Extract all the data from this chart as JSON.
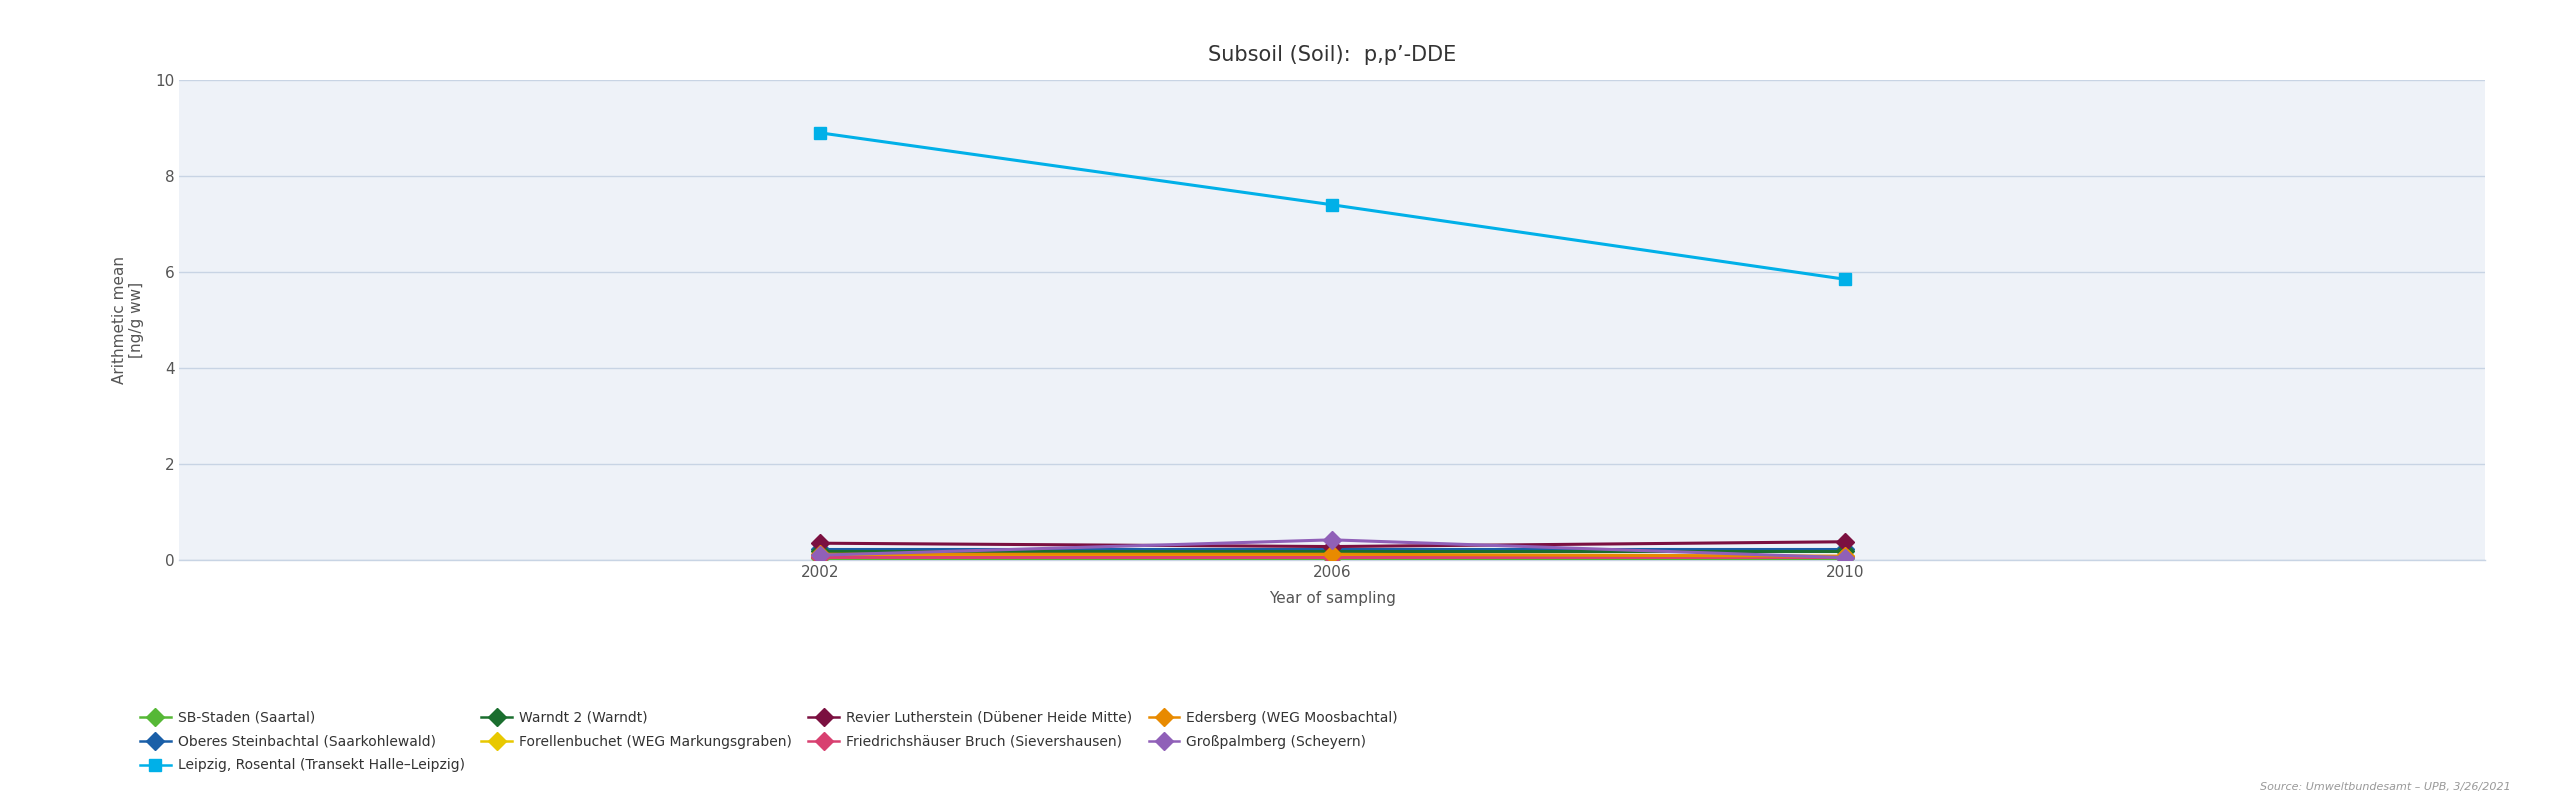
{
  "title": "Subsoil (Soil):  p,p’-DDE",
  "xlabel": "Year of sampling",
  "ylabel": "Arithmetic mean\n[ng/g ww]",
  "xlim": [
    1997,
    2015
  ],
  "ylim": [
    0,
    10
  ],
  "yticks": [
    0,
    2,
    4,
    6,
    8,
    10
  ],
  "xticks": [
    2002,
    2006,
    2010
  ],
  "years": [
    2002,
    2006,
    2010
  ],
  "series": [
    {
      "label": "SB-Staden (Saartal)",
      "color": "#56b836",
      "values": [
        0.05,
        0.05,
        0.05
      ],
      "marker": "D",
      "markersize": 9
    },
    {
      "label": "Oberes Steinbachtal (Saarkohlewald)",
      "color": "#1a5fa8",
      "values": [
        0.22,
        0.22,
        0.22
      ],
      "marker": "D",
      "markersize": 9
    },
    {
      "label": "Leipzig, Rosental (Transekt Halle–Leipzig)",
      "color": "#00b0e8",
      "values": [
        8.9,
        7.4,
        5.85
      ],
      "marker": "s",
      "markersize": 9
    },
    {
      "label": "Warndt 2 (Warndt)",
      "color": "#1a6e2e",
      "values": [
        0.18,
        0.18,
        0.18
      ],
      "marker": "D",
      "markersize": 9
    },
    {
      "label": "Forellenbuchet (WEG Markungsgraben)",
      "color": "#e8c800",
      "values": [
        0.08,
        0.08,
        0.08
      ],
      "marker": "D",
      "markersize": 9
    },
    {
      "label": "Revier Lutherstein (Dübener Heide Mitte)",
      "color": "#7b1040",
      "values": [
        0.35,
        0.28,
        0.38
      ],
      "marker": "D",
      "markersize": 9
    },
    {
      "label": "Friedrichshäuser Bruch (Sievershausen)",
      "color": "#d84070",
      "values": [
        0.06,
        0.06,
        0.06
      ],
      "marker": "D",
      "markersize": 9
    },
    {
      "label": "Edersberg (WEG Moosbachtal)",
      "color": "#e88a00",
      "values": [
        0.12,
        0.12,
        0.08
      ],
      "marker": "D",
      "markersize": 9
    },
    {
      "label": "Großpalmberg (Scheyern)",
      "color": "#9060b8",
      "values": [
        0.1,
        0.42,
        0.05
      ],
      "marker": "D",
      "markersize": 9
    }
  ],
  "source_text": "Source: Umweltbundesamt – UPB, 3/26/2021",
  "bg_color": "#eef2f8",
  "grid_color": "#c8d4e4",
  "title_fontsize": 15,
  "label_fontsize": 11,
  "tick_fontsize": 11,
  "legend_fontsize": 10,
  "linewidth": 2.2
}
